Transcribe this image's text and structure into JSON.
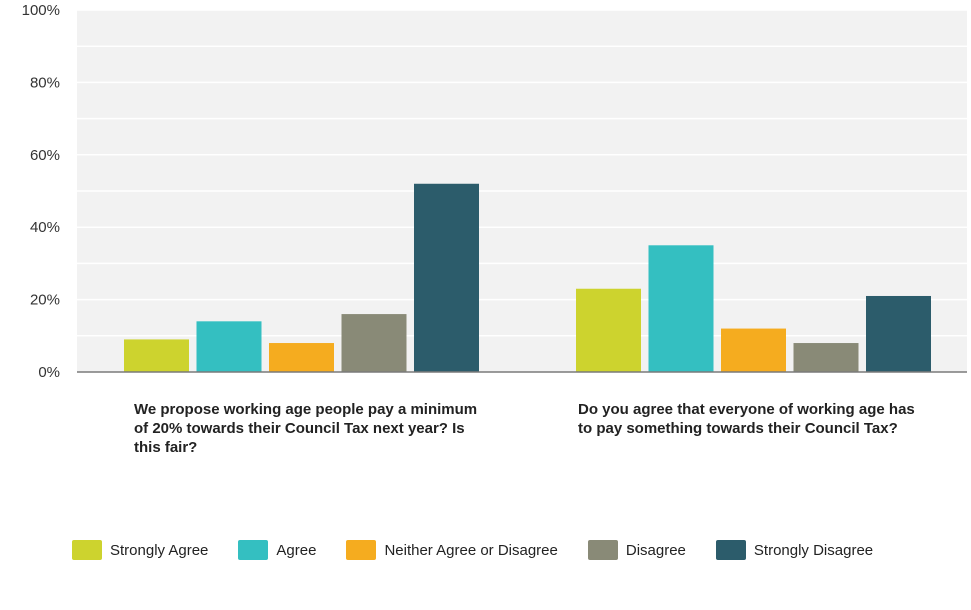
{
  "chart_data": {
    "type": "bar",
    "title": "",
    "xlabel": "",
    "ylabel": "",
    "ylim": [
      0,
      100
    ],
    "yticks": [
      "0%",
      "20%",
      "40%",
      "60%",
      "80%",
      "100%"
    ],
    "categories": [
      "We propose working age people pay a minimum of 20% towards their Council Tax next year? Is this fair?",
      "Do you agree that everyone of working age has to pay something towards their Council Tax?"
    ],
    "series": [
      {
        "name": "Strongly Agree",
        "color": "#cdd32e",
        "values": [
          9,
          23
        ]
      },
      {
        "name": "Agree",
        "color": "#34bfc1",
        "values": [
          14,
          35
        ]
      },
      {
        "name": "Neither Agree or Disagree",
        "color": "#f5ac1f",
        "values": [
          8,
          12
        ]
      },
      {
        "name": "Disagree",
        "color": "#898a77",
        "values": [
          16,
          8
        ]
      },
      {
        "name": "Strongly Disagree",
        "color": "#2c5c6b",
        "values": [
          52,
          21
        ]
      }
    ],
    "grid": true,
    "legend_position": "bottom"
  }
}
